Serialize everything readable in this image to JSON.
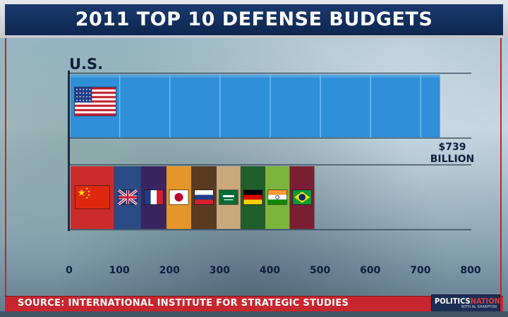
{
  "header": {
    "title": "2011 TOP 10 DEFENSE BUDGETS"
  },
  "footer": {
    "source": "SOURCE: INTERNATIONAL INSTITUTE FOR STRATEGIC STUDIES",
    "logo_main_a": "POLITICS",
    "logo_main_b": "NATION",
    "logo_sub": "WITH AL SHARPTON"
  },
  "colors": {
    "title_bg": "#123066",
    "accent_red": "#c8222a",
    "us_bar": "#2f8fd8"
  },
  "chart_data": {
    "type": "bar",
    "title": "2011 TOP 10 DEFENSE BUDGETS",
    "xlim": [
      0,
      800
    ],
    "x_ticks": [
      0,
      100,
      200,
      300,
      400,
      500,
      600,
      700,
      800
    ],
    "unit": "billion USD",
    "us": {
      "label": "U.S.",
      "value": 739,
      "value_label_line1": "$739",
      "value_label_line2": "BILLION",
      "flag": "us-flag",
      "color": "#2f8fd8"
    },
    "others": [
      {
        "country": "China",
        "value": 89.8,
        "color": "#cc2b2b",
        "flag": "china-flag"
      },
      {
        "country": "United Kingdom",
        "value": 53.8,
        "color": "#2a4b86",
        "flag": "uk-flag"
      },
      {
        "country": "France",
        "value": 50.0,
        "color": "#3b2561",
        "flag": "france-flag"
      },
      {
        "country": "Japan",
        "value": 50.1,
        "color": "#e4962a",
        "flag": "japan-flag"
      },
      {
        "country": "Russia",
        "value": 49.7,
        "color": "#5b3a22",
        "flag": "russia-flag"
      },
      {
        "country": "Saudi Arabia",
        "value": 48.5,
        "color": "#c9a87c",
        "flag": "saudi-flag"
      },
      {
        "country": "Germany",
        "value": 48.5,
        "color": "#1f5f2c",
        "flag": "germany-flag"
      },
      {
        "country": "India",
        "value": 49.3,
        "color": "#7cb53c",
        "flag": "india-flag"
      },
      {
        "country": "Brazil",
        "value": 49.1,
        "color": "#7a1f33",
        "flag": "brazil-flag"
      }
    ]
  }
}
